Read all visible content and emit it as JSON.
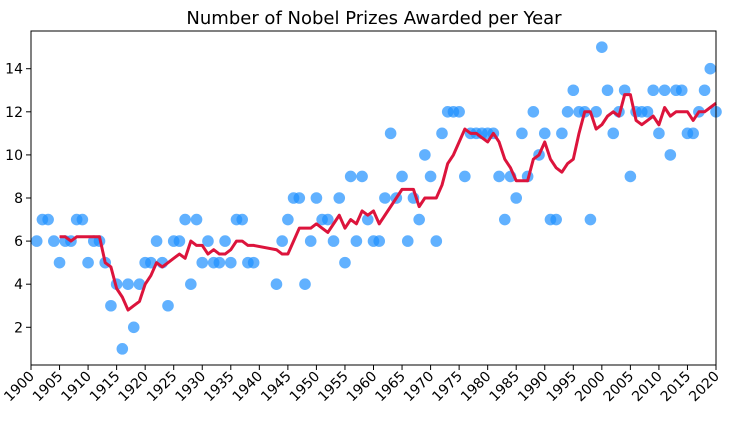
{
  "chart_data": {
    "type": "scatter",
    "title": "Number of Nobel Prizes Awarded per Year",
    "xlabel": "",
    "ylabel": "",
    "xlim": [
      1900,
      2020
    ],
    "ylim": [
      0.25,
      15.75
    ],
    "x_ticks": [
      1900,
      1905,
      1910,
      1915,
      1920,
      1925,
      1930,
      1935,
      1940,
      1945,
      1950,
      1955,
      1960,
      1965,
      1970,
      1975,
      1980,
      1985,
      1990,
      1995,
      2000,
      2005,
      2010,
      2015,
      2020
    ],
    "y_ticks": [
      2,
      4,
      6,
      8,
      10,
      12,
      14
    ],
    "grid": false,
    "legend": "none",
    "colors": {
      "points": "#1E90FF",
      "rolling_average": "#DC143C",
      "axes": "#000000"
    },
    "series": [
      {
        "kind": "scatter",
        "x": [
          1901,
          1902,
          1903,
          1904,
          1905,
          1906,
          1907,
          1908,
          1909,
          1910,
          1911,
          1912,
          1913,
          1914,
          1915,
          1916,
          1917,
          1918,
          1919,
          1920,
          1921,
          1922,
          1923,
          1924,
          1925,
          1926,
          1927,
          1928,
          1929,
          1930,
          1931,
          1932,
          1933,
          1934,
          1935,
          1936,
          1937,
          1938,
          1939,
          1943,
          1944,
          1945,
          1946,
          1947,
          1948,
          1949,
          1950,
          1951,
          1952,
          1953,
          1954,
          1955,
          1956,
          1957,
          1958,
          1959,
          1960,
          1961,
          1962,
          1963,
          1964,
          1965,
          1966,
          1967,
          1968,
          1969,
          1970,
          1971,
          1972,
          1973,
          1974,
          1975,
          1976,
          1977,
          1978,
          1979,
          1980,
          1981,
          1982,
          1983,
          1984,
          1985,
          1986,
          1987,
          1988,
          1989,
          1990,
          1991,
          1992,
          1993,
          1994,
          1995,
          1996,
          1997,
          1998,
          1999,
          2000,
          2001,
          2002,
          2003,
          2004,
          2005,
          2006,
          2007,
          2008,
          2009,
          2010,
          2011,
          2012,
          2013,
          2014,
          2015,
          2016,
          2017,
          2018,
          2019,
          2020
        ],
        "y": [
          6,
          7,
          7,
          6,
          5,
          6,
          6,
          7,
          7,
          5,
          6,
          6,
          5,
          3,
          4,
          1,
          4,
          2,
          4,
          5,
          5,
          6,
          5,
          3,
          6,
          6,
          7,
          4,
          7,
          5,
          6,
          5,
          5,
          6,
          5,
          7,
          7,
          5,
          5,
          4,
          6,
          7,
          8,
          8,
          4,
          6,
          8,
          7,
          7,
          6,
          8,
          5,
          9,
          6,
          9,
          7,
          6,
          6,
          8,
          11,
          8,
          9,
          6,
          8,
          7,
          10,
          9,
          6,
          11,
          12,
          12,
          12,
          9,
          11,
          11,
          11,
          11,
          11,
          9,
          7,
          9,
          8,
          11,
          9,
          12,
          10,
          11,
          7,
          7,
          11,
          12,
          13,
          12,
          12,
          7,
          12,
          15,
          13,
          11,
          12,
          13,
          9,
          12,
          12,
          12,
          13,
          11,
          13,
          10,
          13,
          13,
          11,
          11,
          12,
          13,
          14,
          12
        ]
      },
      {
        "kind": "line",
        "x": [
          1905,
          1906,
          1907,
          1908,
          1909,
          1910,
          1911,
          1912,
          1913,
          1914,
          1915,
          1916,
          1917,
          1918,
          1919,
          1920,
          1921,
          1922,
          1923,
          1924,
          1925,
          1926,
          1927,
          1928,
          1929,
          1930,
          1931,
          1932,
          1933,
          1934,
          1935,
          1936,
          1937,
          1938,
          1939,
          1943,
          1944,
          1945,
          1946,
          1947,
          1948,
          1949,
          1950,
          1951,
          1952,
          1953,
          1954,
          1955,
          1956,
          1957,
          1958,
          1959,
          1960,
          1961,
          1962,
          1963,
          1964,
          1965,
          1966,
          1967,
          1968,
          1969,
          1970,
          1971,
          1972,
          1973,
          1974,
          1975,
          1976,
          1977,
          1978,
          1979,
          1980,
          1981,
          1982,
          1983,
          1984,
          1985,
          1986,
          1987,
          1988,
          1989,
          1990,
          1991,
          1992,
          1993,
          1994,
          1995,
          1996,
          1997,
          1998,
          1999,
          2000,
          2001,
          2002,
          2003,
          2004,
          2005,
          2006,
          2007,
          2008,
          2009,
          2010,
          2011,
          2012,
          2013,
          2014,
          2015,
          2016,
          2017,
          2018,
          2019,
          2020
        ],
        "y": [
          6.2,
          6.2,
          6.0,
          6.2,
          6.2,
          6.2,
          6.2,
          6.2,
          5.0,
          4.8,
          3.8,
          3.4,
          2.8,
          3.0,
          3.2,
          4.0,
          4.4,
          5.0,
          4.8,
          5.0,
          5.2,
          5.4,
          5.2,
          6.0,
          5.8,
          5.8,
          5.4,
          5.6,
          5.4,
          5.4,
          5.6,
          6.0,
          6.0,
          5.8,
          5.8,
          5.6,
          5.4,
          5.4,
          6.0,
          6.6,
          6.6,
          6.6,
          6.8,
          6.6,
          6.4,
          6.8,
          7.2,
          6.6,
          7.0,
          6.8,
          7.4,
          7.2,
          7.4,
          6.8,
          7.2,
          7.6,
          8.0,
          8.4,
          8.4,
          8.4,
          7.6,
          8.0,
          8.0,
          8.0,
          8.6,
          9.6,
          10.0,
          10.6,
          11.2,
          11.0,
          11.0,
          10.8,
          10.6,
          11.0,
          10.6,
          9.8,
          9.4,
          8.8,
          8.8,
          8.8,
          9.8,
          10.0,
          10.6,
          9.8,
          9.4,
          9.2,
          9.6,
          9.8,
          11.0,
          12.0,
          12.0,
          11.2,
          11.4,
          11.8,
          12.0,
          11.8,
          12.8,
          12.8,
          11.6,
          11.4,
          11.6,
          11.8,
          11.4,
          12.2,
          11.8,
          12.0,
          12.0,
          12.0,
          11.6,
          12.0,
          12.0,
          12.2,
          12.4
        ]
      }
    ]
  }
}
